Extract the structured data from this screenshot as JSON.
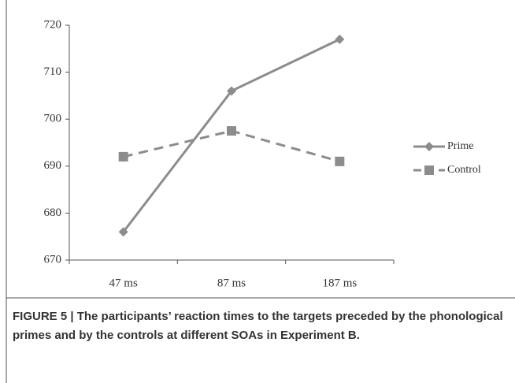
{
  "chart_data": {
    "type": "line",
    "categories": [
      "47 ms",
      "87 ms",
      "187 ms"
    ],
    "series": [
      {
        "name": "Prime",
        "color": "#8c8c8c",
        "dash": false,
        "marker": "diamond",
        "values": [
          676,
          706,
          717
        ]
      },
      {
        "name": "Control",
        "color": "#8c8c8c",
        "dash": true,
        "marker": "square",
        "values": [
          692,
          697.5,
          691
        ]
      }
    ],
    "ylim": [
      670,
      720
    ],
    "yticks": [
      670,
      680,
      690,
      700,
      710,
      720
    ],
    "grid": false,
    "legend": "right",
    "caption": "FIGURE 5 | The participants’ reaction times to the targets preceded by the phonological primes and by the controls at different SOAs in Experiment B."
  }
}
